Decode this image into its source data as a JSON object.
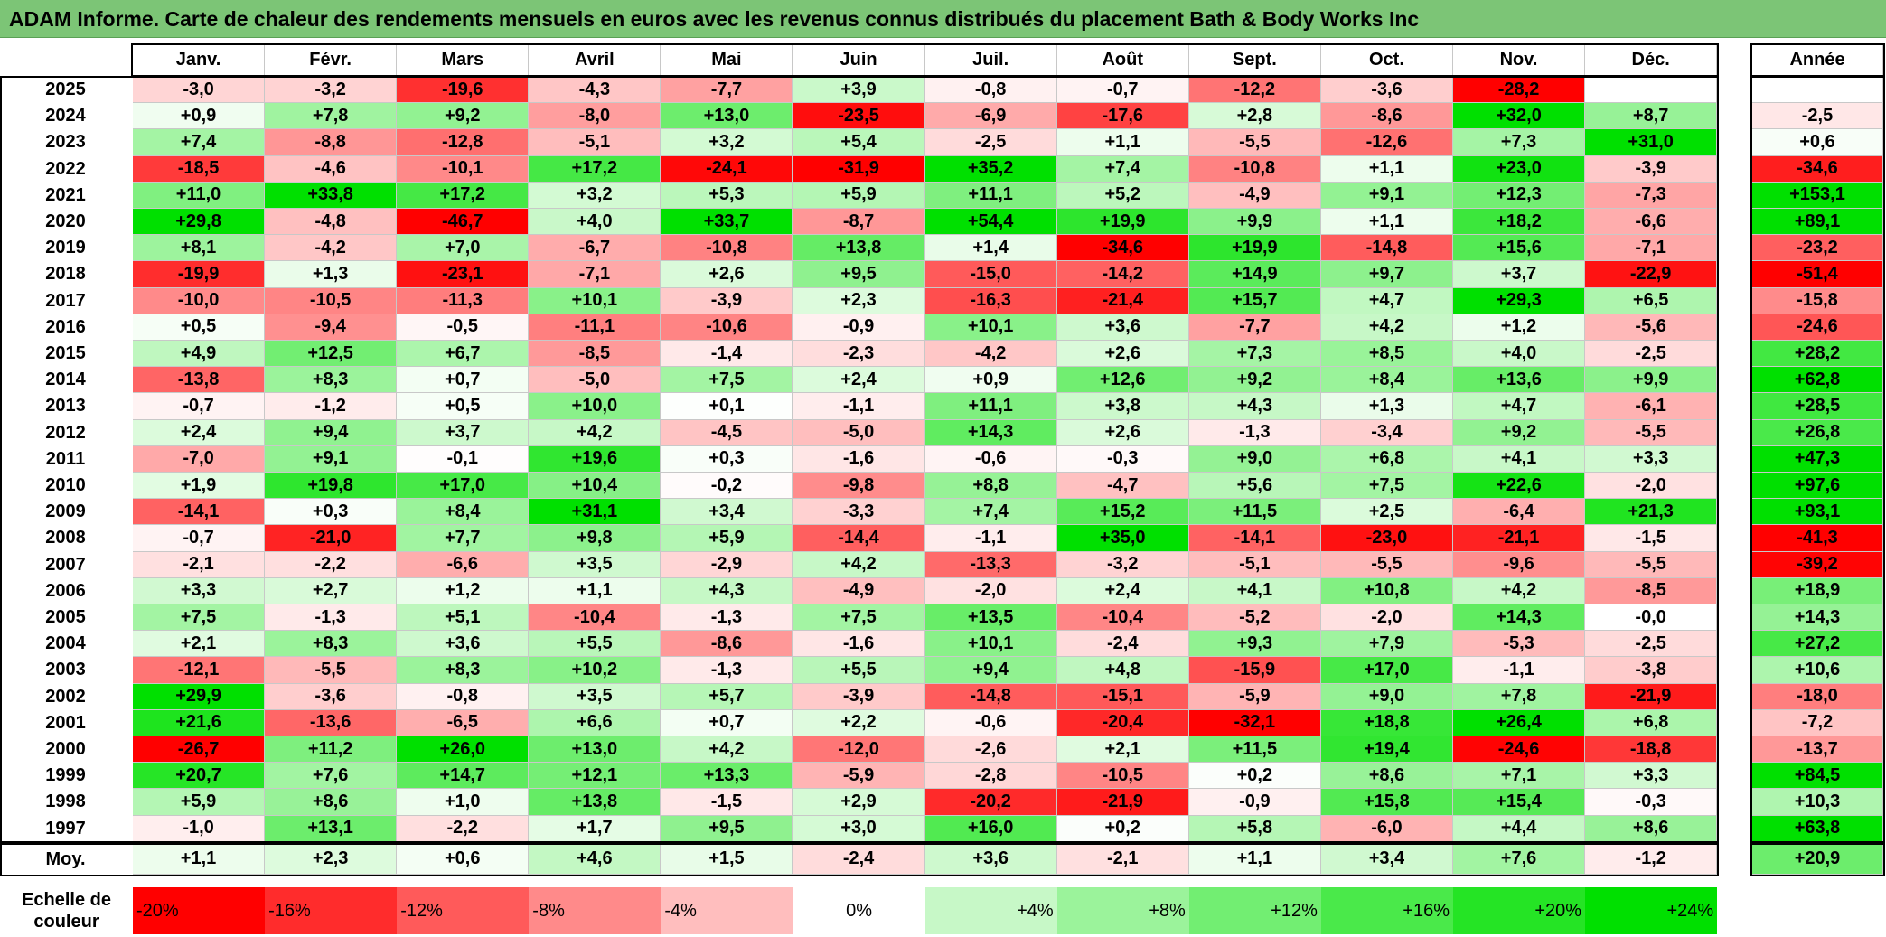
{
  "title": "ADAM Informe. Carte de chaleur des rendements mensuels en euros avec les revenus connus distribués du placement Bath & Body Works Inc",
  "chart_data": {
    "type": "heatmap",
    "title": "ADAM Informe. Carte de chaleur des rendements mensuels en euros avec les revenus connus distribués du placement Bath & Body Works Inc",
    "columns": [
      "Janv.",
      "Févr.",
      "Mars",
      "Avril",
      "Mai",
      "Juin",
      "Juil.",
      "Août",
      "Sept.",
      "Oct.",
      "Nov.",
      "Déc."
    ],
    "year_column_label": "Année",
    "rows": [
      {
        "year": "2025",
        "values": [
          "-3,0",
          "-3,2",
          "-19,6",
          "-4,3",
          "-7,7",
          "+3,9",
          "-0,8",
          "-0,7",
          "-12,2",
          "-3,6",
          "-28,2",
          ""
        ],
        "annual": ""
      },
      {
        "year": "2024",
        "values": [
          "+0,9",
          "+7,8",
          "+9,2",
          "-8,0",
          "+13,0",
          "-23,5",
          "-6,9",
          "-17,6",
          "+2,8",
          "-8,6",
          "+32,0",
          "+8,7"
        ],
        "annual": "-2,5"
      },
      {
        "year": "2023",
        "values": [
          "+7,4",
          "-8,8",
          "-12,8",
          "-5,1",
          "+3,2",
          "+5,4",
          "-2,5",
          "+1,1",
          "-5,5",
          "-12,6",
          "+7,3",
          "+31,0"
        ],
        "annual": "+0,6"
      },
      {
        "year": "2022",
        "values": [
          "-18,5",
          "-4,6",
          "-10,1",
          "+17,2",
          "-24,1",
          "-31,9",
          "+35,2",
          "+7,4",
          "-10,8",
          "+1,1",
          "+23,0",
          "-3,9"
        ],
        "annual": "-34,6"
      },
      {
        "year": "2021",
        "values": [
          "+11,0",
          "+33,8",
          "+17,2",
          "+3,2",
          "+5,3",
          "+5,9",
          "+11,1",
          "+5,2",
          "-4,9",
          "+9,1",
          "+12,3",
          "-7,3"
        ],
        "annual": "+153,1"
      },
      {
        "year": "2020",
        "values": [
          "+29,8",
          "-4,8",
          "-46,7",
          "+4,0",
          "+33,7",
          "-8,7",
          "+54,4",
          "+19,9",
          "+9,9",
          "+1,1",
          "+18,2",
          "-6,6"
        ],
        "annual": "+89,1"
      },
      {
        "year": "2019",
        "values": [
          "+8,1",
          "-4,2",
          "+7,0",
          "-6,7",
          "-10,8",
          "+13,8",
          "+1,4",
          "-34,6",
          "+19,9",
          "-14,8",
          "+15,6",
          "-7,1"
        ],
        "annual": "-23,2"
      },
      {
        "year": "2018",
        "values": [
          "-19,9",
          "+1,3",
          "-23,1",
          "-7,1",
          "+2,6",
          "+9,5",
          "-15,0",
          "-14,2",
          "+14,9",
          "+9,7",
          "+3,7",
          "-22,9"
        ],
        "annual": "-51,4"
      },
      {
        "year": "2017",
        "values": [
          "-10,0",
          "-10,5",
          "-11,3",
          "+10,1",
          "-3,9",
          "+2,3",
          "-16,3",
          "-21,4",
          "+15,7",
          "+4,7",
          "+29,3",
          "+6,5"
        ],
        "annual": "-15,8"
      },
      {
        "year": "2016",
        "values": [
          "+0,5",
          "-9,4",
          "-0,5",
          "-11,1",
          "-10,6",
          "-0,9",
          "+10,1",
          "+3,6",
          "-7,7",
          "+4,2",
          "+1,2",
          "-5,6"
        ],
        "annual": "-24,6"
      },
      {
        "year": "2015",
        "values": [
          "+4,9",
          "+12,5",
          "+6,7",
          "-8,5",
          "-1,4",
          "-2,3",
          "-4,2",
          "+2,6",
          "+7,3",
          "+8,5",
          "+4,0",
          "-2,5"
        ],
        "annual": "+28,2"
      },
      {
        "year": "2014",
        "values": [
          "-13,8",
          "+8,3",
          "+0,7",
          "-5,0",
          "+7,5",
          "+2,4",
          "+0,9",
          "+12,6",
          "+9,2",
          "+8,4",
          "+13,6",
          "+9,9"
        ],
        "annual": "+62,8"
      },
      {
        "year": "2013",
        "values": [
          "-0,7",
          "-1,2",
          "+0,5",
          "+10,0",
          "+0,1",
          "-1,1",
          "+11,1",
          "+3,8",
          "+4,3",
          "+1,3",
          "+4,7",
          "-6,1"
        ],
        "annual": "+28,5"
      },
      {
        "year": "2012",
        "values": [
          "+2,4",
          "+9,4",
          "+3,7",
          "+4,2",
          "-4,5",
          "-5,0",
          "+14,3",
          "+2,6",
          "-1,3",
          "-3,4",
          "+9,2",
          "-5,5"
        ],
        "annual": "+26,8"
      },
      {
        "year": "2011",
        "values": [
          "-7,0",
          "+9,1",
          "-0,1",
          "+19,6",
          "+0,3",
          "-1,6",
          "-0,6",
          "-0,3",
          "+9,0",
          "+6,8",
          "+4,1",
          "+3,3"
        ],
        "annual": "+47,3"
      },
      {
        "year": "2010",
        "values": [
          "+1,9",
          "+19,8",
          "+17,0",
          "+10,4",
          "-0,2",
          "-9,8",
          "+8,8",
          "-4,7",
          "+5,6",
          "+7,5",
          "+22,6",
          "-2,0"
        ],
        "annual": "+97,6"
      },
      {
        "year": "2009",
        "values": [
          "-14,1",
          "+0,3",
          "+8,4",
          "+31,1",
          "+3,4",
          "-3,3",
          "+7,4",
          "+15,2",
          "+11,5",
          "+2,5",
          "-6,4",
          "+21,3"
        ],
        "annual": "+93,1"
      },
      {
        "year": "2008",
        "values": [
          "-0,7",
          "-21,0",
          "+7,7",
          "+9,8",
          "+5,9",
          "-14,4",
          "-1,1",
          "+35,0",
          "-14,1",
          "-23,0",
          "-21,1",
          "-1,5"
        ],
        "annual": "-41,3"
      },
      {
        "year": "2007",
        "values": [
          "-2,1",
          "-2,2",
          "-6,6",
          "+3,5",
          "-2,9",
          "+4,2",
          "-13,3",
          "-3,2",
          "-5,1",
          "-5,5",
          "-9,6",
          "-5,5"
        ],
        "annual": "-39,2"
      },
      {
        "year": "2006",
        "values": [
          "+3,3",
          "+2,7",
          "+1,2",
          "+1,1",
          "+4,3",
          "-4,9",
          "-2,0",
          "+2,4",
          "+4,1",
          "+10,8",
          "+4,2",
          "-8,5"
        ],
        "annual": "+18,9"
      },
      {
        "year": "2005",
        "values": [
          "+7,5",
          "-1,3",
          "+5,1",
          "-10,4",
          "-1,3",
          "+7,5",
          "+13,5",
          "-10,4",
          "-5,2",
          "-2,0",
          "+14,3",
          "-0,0"
        ],
        "annual": "+14,3"
      },
      {
        "year": "2004",
        "values": [
          "+2,1",
          "+8,3",
          "+3,6",
          "+5,5",
          "-8,6",
          "-1,6",
          "+10,1",
          "-2,4",
          "+9,3",
          "+7,9",
          "-5,3",
          "-2,5"
        ],
        "annual": "+27,2"
      },
      {
        "year": "2003",
        "values": [
          "-12,1",
          "-5,5",
          "+8,3",
          "+10,2",
          "-1,3",
          "+5,5",
          "+9,4",
          "+4,8",
          "-15,9",
          "+17,0",
          "-1,1",
          "-3,8"
        ],
        "annual": "+10,6"
      },
      {
        "year": "2002",
        "values": [
          "+29,9",
          "-3,6",
          "-0,8",
          "+3,5",
          "+5,7",
          "-3,9",
          "-14,8",
          "-15,1",
          "-5,9",
          "+9,0",
          "+7,8",
          "-21,9"
        ],
        "annual": "-18,0"
      },
      {
        "year": "2001",
        "values": [
          "+21,6",
          "-13,6",
          "-6,5",
          "+6,6",
          "+0,7",
          "+2,2",
          "-0,6",
          "-20,4",
          "-32,1",
          "+18,8",
          "+26,4",
          "+6,8"
        ],
        "annual": "-7,2"
      },
      {
        "year": "2000",
        "values": [
          "-26,7",
          "+11,2",
          "+26,0",
          "+13,0",
          "+4,2",
          "-12,0",
          "-2,6",
          "+2,1",
          "+11,5",
          "+19,4",
          "-24,6",
          "-18,8"
        ],
        "annual": "-13,7"
      },
      {
        "year": "1999",
        "values": [
          "+20,7",
          "+7,6",
          "+14,7",
          "+12,1",
          "+13,3",
          "-5,9",
          "-2,8",
          "-10,5",
          "+0,2",
          "+8,6",
          "+7,1",
          "+3,3"
        ],
        "annual": "+84,5"
      },
      {
        "year": "1998",
        "values": [
          "+5,9",
          "+8,6",
          "+1,0",
          "+13,8",
          "-1,5",
          "+2,9",
          "-20,2",
          "-21,9",
          "-0,9",
          "+15,8",
          "+15,4",
          "-0,3"
        ],
        "annual": "+10,3"
      },
      {
        "year": "1997",
        "values": [
          "-1,0",
          "+13,1",
          "-2,2",
          "+1,7",
          "+9,5",
          "+3,0",
          "+16,0",
          "+0,2",
          "+5,8",
          "-6,0",
          "+4,4",
          "+8,6"
        ],
        "annual": "+63,8"
      }
    ],
    "average": {
      "label": "Moy.",
      "values": [
        "+1,1",
        "+2,3",
        "+0,6",
        "+4,6",
        "+1,5",
        "-2,4",
        "+3,6",
        "-2,1",
        "+1,1",
        "+3,4",
        "+7,6",
        "-1,2"
      ],
      "annual": "+20,9"
    },
    "color_scale": {
      "label": "Echelle de couleur",
      "stops": [
        "-20%",
        "-16%",
        "-12%",
        "-8%",
        "-4%",
        "0%",
        "+4%",
        "+8%",
        "+12%",
        "+16%",
        "+20%",
        "+24%"
      ],
      "colors": {
        "negative": "#ff0000",
        "neutral": "#ffffff",
        "positive": "#00e000"
      }
    }
  }
}
